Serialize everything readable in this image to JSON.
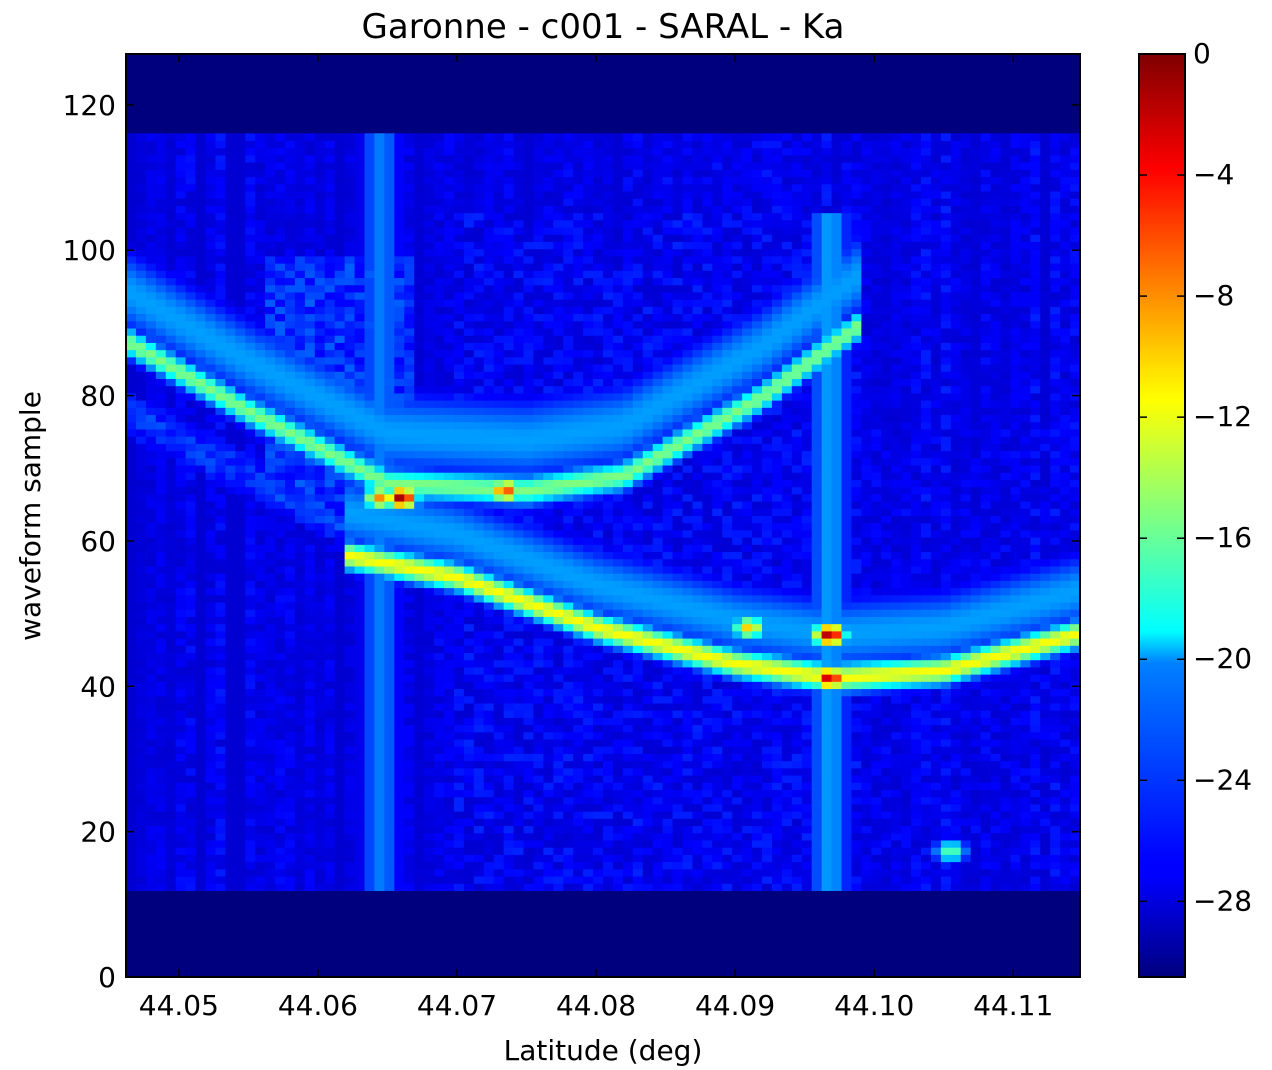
{
  "chart_data": {
    "type": "heatmap",
    "title": "Garonne - c001 - SARAL - Ka",
    "xlabel": "Latitude (deg)",
    "ylabel": "waveform sample",
    "xlim": [
      44.0462,
      44.1148
    ],
    "ylim": [
      0,
      127
    ],
    "xticks": [
      44.05,
      44.06,
      44.07,
      44.08,
      44.09,
      44.1,
      44.11
    ],
    "xtick_labels": [
      "44.05",
      "44.06",
      "44.07",
      "44.08",
      "44.09",
      "44.10",
      "44.11"
    ],
    "yticks": [
      0,
      20,
      40,
      60,
      80,
      100,
      120
    ],
    "ytick_labels": [
      "0",
      "20",
      "40",
      "60",
      "80",
      "100",
      "120"
    ],
    "colormap": "jet",
    "colorbar": {
      "min": -30.5,
      "max": 0,
      "ticks": [
        0,
        -4,
        -8,
        -12,
        -16,
        -20,
        -24,
        -28
      ],
      "tick_labels": [
        "0",
        "−4",
        "−8",
        "−12",
        "−16",
        "−20",
        "−24",
        "−28"
      ]
    },
    "n_samples": 128,
    "background_level_dB": -30.5,
    "grid": false,
    "features": {
      "vertical_stripes": [
        {
          "lat": 44.0645,
          "samples": [
            12,
            116
          ],
          "level_dB": -23
        },
        {
          "lat": 44.0968,
          "samples": [
            12,
            105
          ],
          "level_dB": -22
        }
      ],
      "upper_hyperbola": [
        {
          "lat": 44.046,
          "sample": 88
        },
        {
          "lat": 44.055,
          "sample": 78
        },
        {
          "lat": 44.065,
          "sample": 68
        },
        {
          "lat": 44.075,
          "sample": 67
        },
        {
          "lat": 44.082,
          "sample": 69
        },
        {
          "lat": 44.092,
          "sample": 80
        },
        {
          "lat": 44.099,
          "sample": 90
        }
      ],
      "lower_curve": [
        {
          "lat": 44.062,
          "sample": 58
        },
        {
          "lat": 44.07,
          "sample": 55
        },
        {
          "lat": 44.08,
          "sample": 48
        },
        {
          "lat": 44.09,
          "sample": 43
        },
        {
          "lat": 44.097,
          "sample": 41
        },
        {
          "lat": 44.105,
          "sample": 42
        },
        {
          "lat": 44.1145,
          "sample": 47
        }
      ],
      "hotspots": [
        {
          "lat": 44.0645,
          "sample": 66,
          "level_dB": -8
        },
        {
          "lat": 44.066,
          "sample": 66,
          "level_dB": -1
        },
        {
          "lat": 44.0735,
          "sample": 67,
          "level_dB": -6
        },
        {
          "lat": 44.0968,
          "sample": 47,
          "level_dB": -1
        },
        {
          "lat": 44.0968,
          "sample": 41,
          "level_dB": -2
        },
        {
          "lat": 44.091,
          "sample": 48,
          "level_dB": -10
        },
        {
          "lat": 44.1055,
          "sample": 17,
          "level_dB": -16
        }
      ]
    }
  }
}
